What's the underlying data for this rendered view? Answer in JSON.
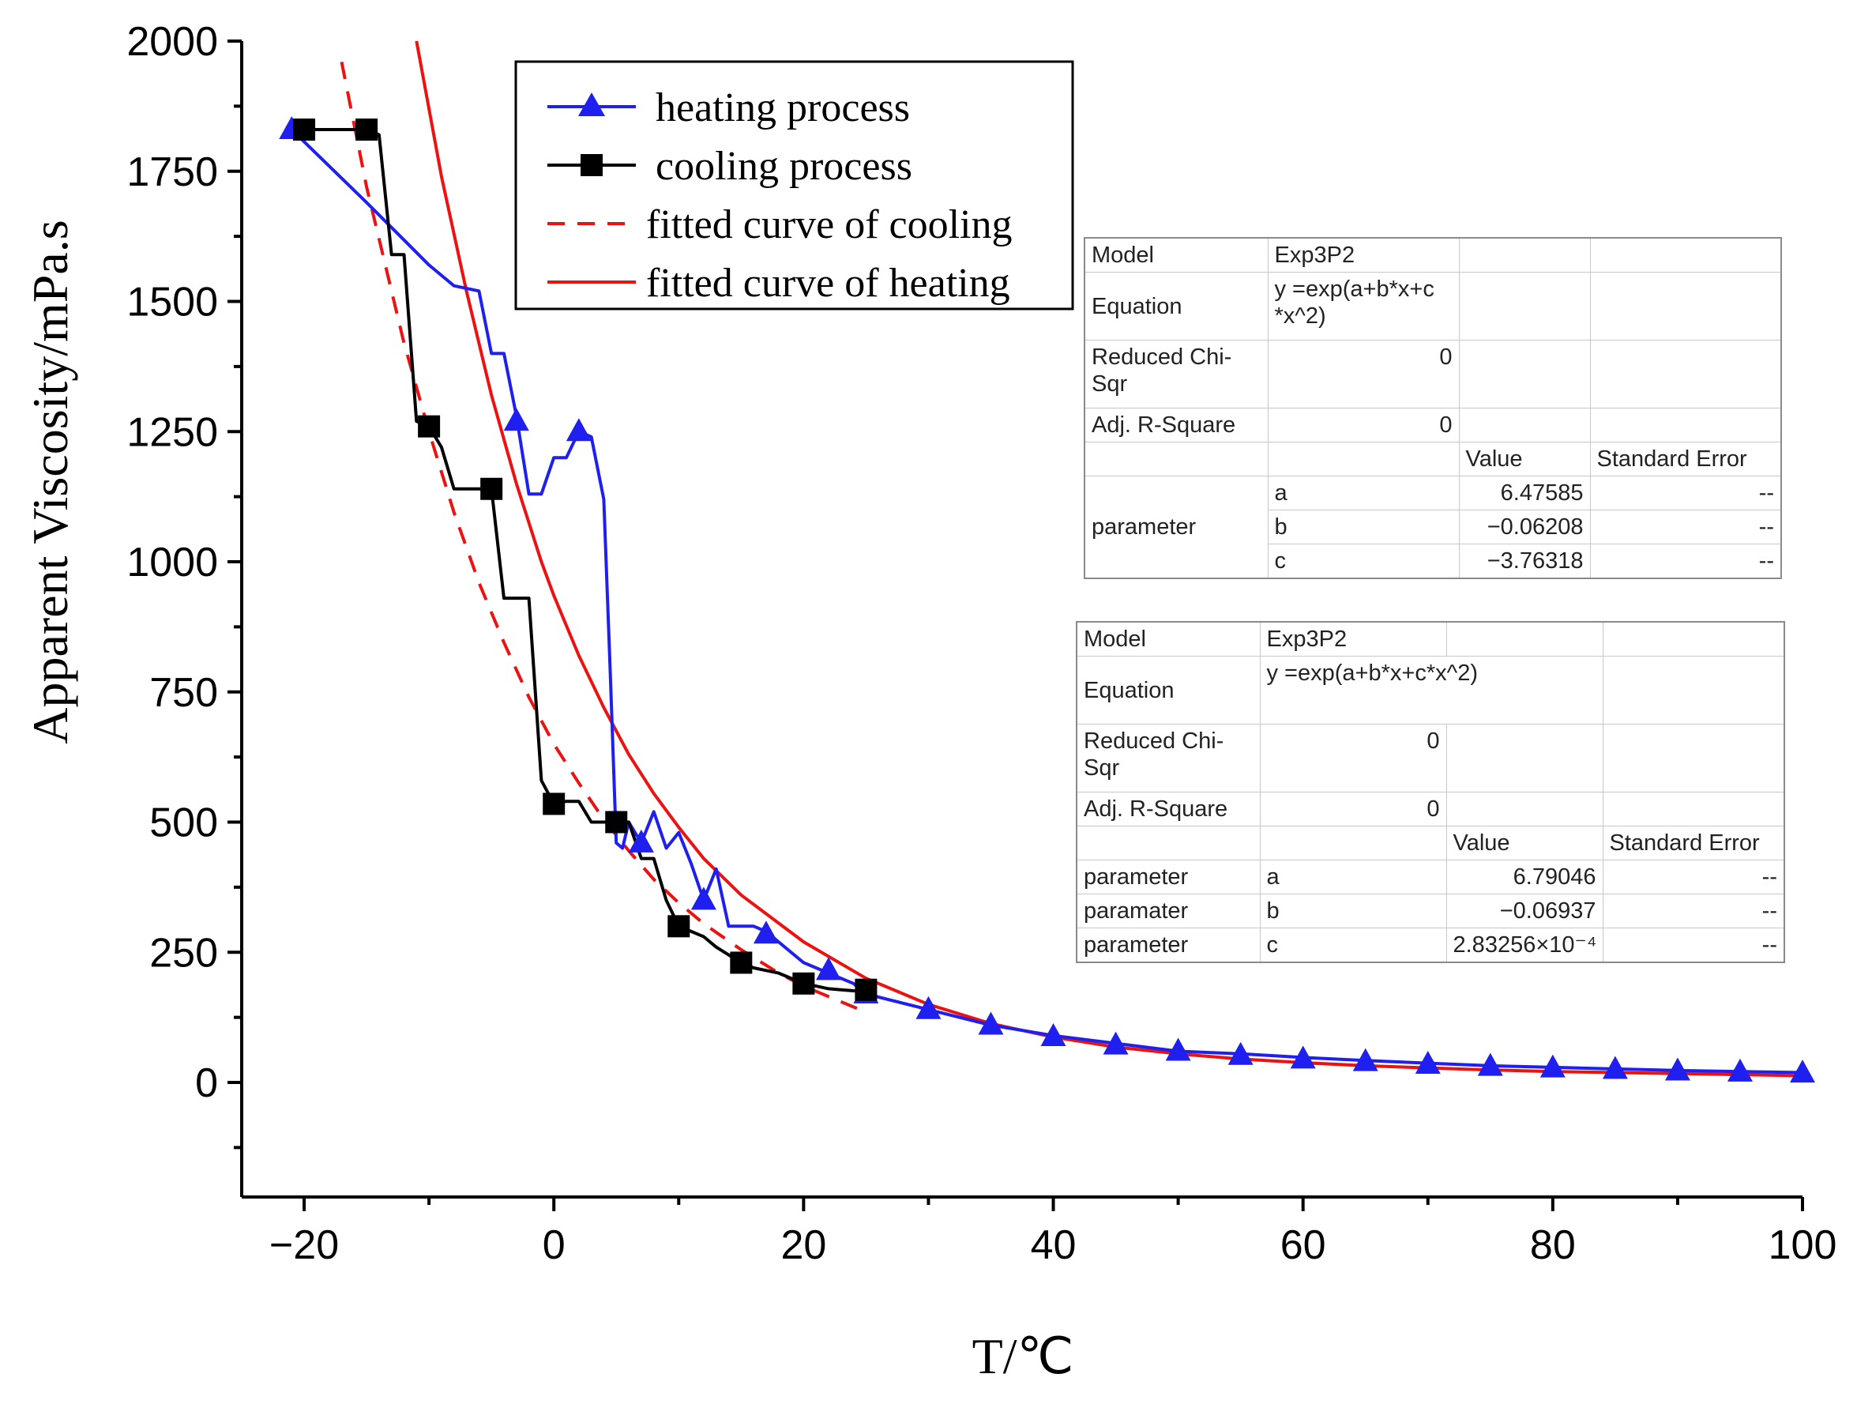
{
  "chart_data": {
    "type": "line",
    "xlabel": "T/℃",
    "ylabel": "Apparent Viscosity/mPa.s",
    "xlim": [
      -25,
      100
    ],
    "ylim": [
      -220,
      2000
    ],
    "x_ticks": [
      -20,
      0,
      20,
      40,
      60,
      80,
      100
    ],
    "x_tick_labels": [
      "−20",
      "0",
      "20",
      "40",
      "60",
      "80",
      "100"
    ],
    "y_ticks": [
      0,
      250,
      500,
      750,
      1000,
      1250,
      1500,
      1750,
      2000
    ],
    "y_tick_labels": [
      "0",
      "250",
      "500",
      "750",
      "1000",
      "1250",
      "1500",
      "1750",
      "2000"
    ],
    "legend_position": "top-center",
    "series": [
      {
        "name": "heating process",
        "color": "#1f1ff0",
        "style": "solid",
        "marker": "triangle",
        "x": [
          -21,
          -15,
          -10,
          -8,
          -6,
          -5,
          -4,
          -3,
          -2,
          -1,
          0,
          1,
          2,
          3,
          4,
          4.5,
          5,
          5.5,
          6,
          7,
          8,
          9,
          10,
          11,
          12,
          13,
          14,
          15,
          16,
          17,
          18,
          20,
          22,
          24,
          25,
          30,
          35,
          40,
          45,
          50,
          55,
          60,
          65,
          70,
          75,
          80,
          85,
          90,
          95,
          100
        ],
        "y": [
          1830,
          1690,
          1570,
          1530,
          1520,
          1400,
          1400,
          1280,
          1130,
          1130,
          1200,
          1200,
          1250,
          1240,
          1120,
          800,
          460,
          450,
          500,
          460,
          520,
          450,
          480,
          420,
          350,
          410,
          300,
          300,
          300,
          290,
          270,
          230,
          210,
          190,
          170,
          140,
          110,
          90,
          75,
          60,
          55,
          48,
          42,
          37,
          32,
          29,
          26,
          23,
          21,
          19
        ],
        "marker_x": [
          -21,
          -3,
          2,
          7,
          12,
          17,
          22,
          25,
          30,
          35,
          40,
          45,
          50,
          55,
          60,
          65,
          70,
          75,
          80,
          85,
          90,
          95,
          100
        ],
        "marker_y": [
          1830,
          1270,
          1250,
          460,
          350,
          285,
          215,
          170,
          140,
          110,
          88,
          72,
          60,
          52,
          45,
          40,
          35,
          31,
          28,
          25,
          22,
          20,
          18
        ]
      },
      {
        "name": "cooling process",
        "color": "#000000",
        "style": "solid",
        "marker": "square",
        "x": [
          -20,
          -15,
          -14,
          -13,
          -12,
          -11,
          -10,
          -9,
          -8,
          -7,
          -6,
          -5,
          -4,
          -3,
          -2,
          -1,
          0,
          1,
          2,
          3,
          4,
          5,
          6,
          7,
          8,
          9,
          10,
          11,
          12,
          13,
          14,
          15,
          16,
          17,
          18,
          19,
          20,
          21,
          22,
          23,
          24,
          25
        ],
        "y": [
          1830,
          1830,
          1820,
          1590,
          1590,
          1270,
          1260,
          1220,
          1140,
          1140,
          1140,
          1140,
          930,
          930,
          930,
          580,
          535,
          540,
          540,
          500,
          500,
          500,
          500,
          430,
          430,
          350,
          300,
          290,
          280,
          260,
          245,
          230,
          220,
          215,
          210,
          200,
          190,
          185,
          180,
          178,
          176,
          175
        ],
        "marker_x": [
          -20,
          -15,
          -10,
          -5,
          0,
          5,
          10,
          15,
          20,
          25
        ],
        "marker_y": [
          1830,
          1830,
          1260,
          1140,
          535,
          500,
          300,
          230,
          190,
          178
        ]
      },
      {
        "name": "fitted curve of cooling",
        "color": "#ee1111",
        "style": "dashed",
        "marker": "none",
        "x": [
          -17,
          -15,
          -12,
          -10,
          -8,
          -6,
          -4,
          -2,
          0,
          2,
          4,
          6,
          8,
          10,
          12,
          15,
          18,
          20,
          22,
          25
        ],
        "y": [
          1960,
          1720,
          1420,
          1250,
          1095,
          960,
          845,
          740,
          650,
          575,
          505,
          445,
          390,
          345,
          305,
          255,
          210,
          185,
          165,
          135
        ]
      },
      {
        "name": "fitted curve of heating",
        "color": "#ee1111",
        "style": "solid",
        "marker": "none",
        "x": [
          -11,
          -9,
          -7,
          -5,
          -3,
          -1,
          0,
          2,
          4,
          6,
          8,
          10,
          12,
          15,
          20,
          25,
          30,
          35,
          40,
          45,
          50,
          55,
          60,
          65,
          70,
          75,
          80,
          85,
          90,
          95,
          100
        ],
        "y": [
          2000,
          1740,
          1520,
          1320,
          1150,
          1000,
          935,
          820,
          720,
          630,
          555,
          490,
          430,
          360,
          270,
          200,
          150,
          113,
          87,
          68,
          55,
          45,
          38,
          32,
          28,
          24,
          21,
          19,
          17,
          15,
          13
        ]
      }
    ]
  },
  "fit_tables": [
    {
      "model_label": "Model",
      "model_value": "Exp3P2",
      "equation_label": "Equation",
      "equation_value": "y =exp(a+b*x+c *x^2)",
      "chi_label": "Reduced Chi-Sqr",
      "chi_value": "0",
      "r2_label": "Adj. R-Square",
      "r2_value": "0",
      "value_header": "Value",
      "error_header": "Standard Error",
      "param_label": "parameter",
      "params": [
        {
          "name": "a",
          "value": "6.47585",
          "error": "--"
        },
        {
          "name": "b",
          "value": "−0.06208",
          "error": "--"
        },
        {
          "name": "c",
          "value": "−3.76318",
          "error": "--"
        }
      ]
    },
    {
      "model_label": "Model",
      "model_value": "Exp3P2",
      "equation_label": "Equation",
      "equation_value": "y =exp(a+b*x+c*x^2)",
      "chi_label": "Reduced Chi-Sqr",
      "chi_value": "0",
      "r2_label": "Adj. R-Square",
      "r2_value": "0",
      "value_header": "Value",
      "error_header": "Standard Error",
      "params": [
        {
          "label": "parameter",
          "name": "a",
          "value": "6.79046",
          "error": "--"
        },
        {
          "label": "paramater",
          "name": "b",
          "value": "−0.06937",
          "error": "--"
        },
        {
          "label": "parameter",
          "name": "c",
          "value": "2.83256×10⁻⁴",
          "error": "--"
        }
      ]
    }
  ]
}
